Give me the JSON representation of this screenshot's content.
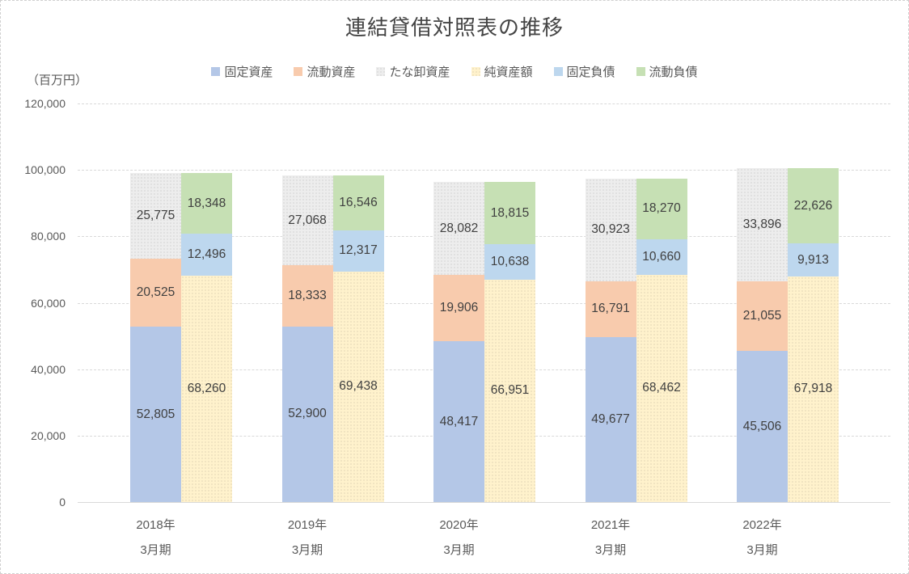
{
  "chart_data": {
    "type": "bar",
    "variant": "paired-stacked-columns",
    "title": "連結貸借対照表の推移",
    "unit_label": "（百万円）",
    "ylabel": "百万円",
    "ylim": [
      0,
      120000
    ],
    "y_tick_step": 20000,
    "y_tick_labels": [
      "0",
      "20,000",
      "40,000",
      "60,000",
      "80,000",
      "100,000",
      "120,000"
    ],
    "grid": "horizontal-dashed",
    "legend_position": "top",
    "categories": [
      {
        "line1": "2018年",
        "line2": "3月期"
      },
      {
        "line1": "2019年",
        "line2": "3月期"
      },
      {
        "line1": "2020年",
        "line2": "3月期"
      },
      {
        "line1": "2021年",
        "line2": "3月期"
      },
      {
        "line1": "2022年",
        "line2": "3月期"
      }
    ],
    "series": [
      {
        "name": "固定資産",
        "stack": "assets",
        "color": "#B4C7E7",
        "pattern": "solid",
        "values": [
          52805,
          52900,
          48417,
          49677,
          45506
        ]
      },
      {
        "name": "流動資産",
        "stack": "assets",
        "color": "#F8CBAD",
        "pattern": "solid",
        "values": [
          20525,
          18333,
          19906,
          16791,
          21055
        ]
      },
      {
        "name": "たな卸資産",
        "stack": "assets",
        "color": "#EDEDED",
        "pattern": "dots",
        "values": [
          25775,
          27068,
          28082,
          30923,
          33896
        ]
      },
      {
        "name": "純資産額",
        "stack": "liabilities",
        "color": "#FFF2CC",
        "pattern": "dots",
        "values": [
          68260,
          69438,
          66951,
          68462,
          67918
        ]
      },
      {
        "name": "固定負債",
        "stack": "liabilities",
        "color": "#BDD7EE",
        "pattern": "solid",
        "values": [
          12496,
          12317,
          10638,
          10660,
          9913
        ]
      },
      {
        "name": "流動負債",
        "stack": "liabilities",
        "color": "#C6E0B4",
        "pattern": "solid",
        "values": [
          18348,
          16546,
          18815,
          18270,
          22626
        ]
      }
    ]
  },
  "colors": {
    "title_text": "#444444",
    "axis_text": "#595959",
    "data_label_text": "#3F3F3F",
    "gridline": "#D9D9D9",
    "background": "#FFFFFF"
  }
}
